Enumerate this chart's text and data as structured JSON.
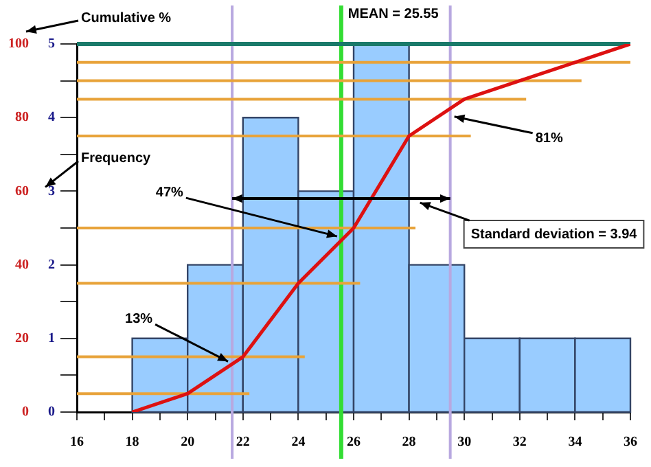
{
  "chart_data": {
    "type": "histogram",
    "ylabel": "Frequency",
    "bins": [
      18,
      20,
      22,
      24,
      26,
      28,
      30,
      32,
      34,
      36
    ],
    "values": [
      1,
      2,
      4,
      3,
      5,
      2,
      1,
      1,
      1
    ],
    "color": "#99ccff",
    "series": [
      {
        "type": "line",
        "axis": "y2",
        "color": "#dd1111",
        "x": [
          18,
          20,
          22,
          24,
          26,
          28,
          30,
          32,
          34,
          36
        ],
        "values": [
          0,
          5,
          15,
          35,
          50,
          75,
          85,
          90,
          95,
          100
        ]
      }
    ],
    "xlim": [
      16,
      36
    ],
    "xticks": [
      16,
      {
        "value": 17,
        "label": null
      },
      18,
      {
        "value": 19,
        "label": null
      },
      20,
      {
        "value": 21,
        "label": null
      },
      22,
      {
        "value": 23,
        "label": null
      },
      24,
      {
        "value": 25,
        "label": null
      },
      26,
      {
        "value": 27,
        "label": null
      },
      28,
      {
        "value": 29,
        "label": null
      },
      30,
      {
        "value": 31,
        "label": null
      },
      32,
      {
        "value": 33,
        "label": null
      },
      34,
      {
        "value": 35,
        "label": null
      },
      36
    ],
    "ylim": [
      0,
      5
    ],
    "yticks": [
      0,
      {
        "value": 0.5,
        "label": null
      },
      1,
      {
        "value": 1.5,
        "label": null
      },
      2,
      {
        "value": 2.5,
        "label": null
      },
      3,
      {
        "value": 3.5,
        "label": null
      },
      4,
      {
        "value": 4.5,
        "label": null
      },
      5
    ],
    "y2lim": [
      0,
      100
    ],
    "y2ticks": [
      0,
      20,
      40,
      60,
      80,
      100
    ],
    "ref_lines": [
      {
        "axis": "x",
        "value": 25.55,
        "label": "MEAN = 25.55",
        "color": "#33dd33"
      },
      {
        "axis": "x",
        "value": 21.61,
        "color": "#b8a8e0"
      },
      {
        "axis": "x",
        "value": 29.49,
        "color": "#b8a8e0"
      },
      {
        "axis": "y2",
        "value": 100,
        "color": "#1a7a6a"
      },
      {
        "axis": "y2",
        "value": 95,
        "color": "#e8a33a"
      },
      {
        "axis": "y2",
        "value": 90,
        "color": "#e8a33a"
      },
      {
        "axis": "y2",
        "value": 85,
        "color": "#e8a33a"
      },
      {
        "axis": "y2",
        "value": 75,
        "color": "#e8a33a"
      },
      {
        "axis": "y2",
        "value": 50,
        "color": "#e8a33a"
      },
      {
        "axis": "y2",
        "value": 35,
        "color": "#e8a33a"
      },
      {
        "axis": "y2",
        "value": 15,
        "color": "#e8a33a"
      },
      {
        "axis": "y2",
        "value": 5,
        "color": "#e8a33a"
      }
    ],
    "annotations": [
      {
        "text": "13%",
        "x": 21.61,
        "y": 0.65
      },
      {
        "text": "47%",
        "x": 25.55,
        "y": 2.35
      },
      {
        "text": "81%",
        "x": 29.49,
        "y": 4.05
      },
      "Standard deviation = 3.94",
      "Cumulative %"
    ],
    "marker": "none",
    "line_style": "solid",
    "legend": false,
    "grid": false
  }
}
